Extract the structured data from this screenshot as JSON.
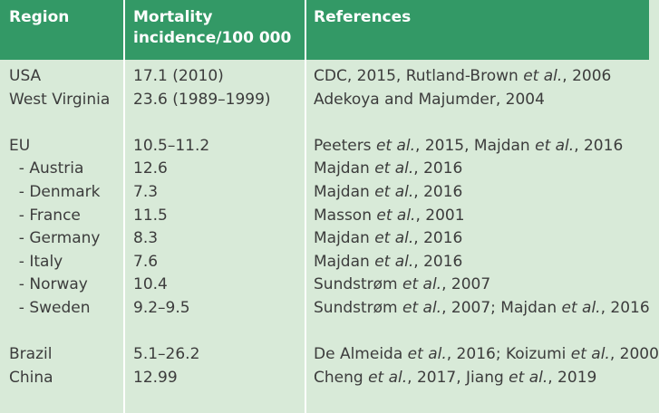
{
  "header": {
    "region": "Region",
    "mortality_line1": "Mortality",
    "mortality_line2": "incidence/100 000",
    "references": "References"
  },
  "groups": [
    {
      "rows": [
        {
          "region": "USA",
          "mortality": "17.1 (2010)",
          "ref": [
            [
              "CDC, 2015, Rutland-Brown ",
              "n"
            ],
            [
              "et al.",
              "i"
            ],
            [
              ", 2006",
              "n"
            ]
          ]
        },
        {
          "region": "West Virginia",
          "mortality": "23.6 (1989–1999)",
          "ref": [
            [
              "Adekoya and Majumder, 2004",
              "n"
            ]
          ]
        }
      ]
    },
    {
      "rows": [
        {
          "region": "EU",
          "mortality": "10.5–11.2",
          "ref": [
            [
              "Peeters ",
              "n"
            ],
            [
              "et al.",
              "i"
            ],
            [
              ", 2015, Majdan ",
              "n"
            ],
            [
              "et al.",
              "i"
            ],
            [
              ", 2016",
              "n"
            ]
          ]
        },
        {
          "region": "  - Austria",
          "mortality": "12.6",
          "ref": [
            [
              "Majdan ",
              "n"
            ],
            [
              "et al.",
              "i"
            ],
            [
              ", 2016",
              "n"
            ]
          ]
        },
        {
          "region": "  - Denmark",
          "mortality": "7.3",
          "ref": [
            [
              "Majdan ",
              "n"
            ],
            [
              "et al.",
              "i"
            ],
            [
              ", 2016",
              "n"
            ]
          ]
        },
        {
          "region": "  - France",
          "mortality": "11.5",
          "ref": [
            [
              "Masson ",
              "n"
            ],
            [
              "et al.",
              "i"
            ],
            [
              ", 2001",
              "n"
            ]
          ]
        },
        {
          "region": "  - Germany",
          "mortality": "8.3",
          "ref": [
            [
              "Majdan ",
              "n"
            ],
            [
              "et al.",
              "i"
            ],
            [
              ", 2016",
              "n"
            ]
          ]
        },
        {
          "region": "  - Italy",
          "mortality": "7.6",
          "ref": [
            [
              "Majdan ",
              "n"
            ],
            [
              "et al.",
              "i"
            ],
            [
              ", 2016",
              "n"
            ]
          ]
        },
        {
          "region": "  - Norway",
          "mortality": "10.4",
          "ref": [
            [
              "Sundstrøm ",
              "n"
            ],
            [
              "et al.",
              "i"
            ],
            [
              ", 2007",
              "n"
            ]
          ]
        },
        {
          "region": "  - Sweden",
          "mortality": "9.2–9.5",
          "ref": [
            [
              "Sundstrøm ",
              "n"
            ],
            [
              "et al.",
              "i"
            ],
            [
              ", 2007; Majdan ",
              "n"
            ],
            [
              "et al.",
              "i"
            ],
            [
              ", 2016",
              "n"
            ]
          ]
        }
      ]
    },
    {
      "rows": [
        {
          "region": "Brazil",
          "mortality": "5.1–26.2",
          "ref": [
            [
              "De Almeida ",
              "n"
            ],
            [
              "et al.",
              "i"
            ],
            [
              ", 2016; Koizumi ",
              "n"
            ],
            [
              "et al.",
              "i"
            ],
            [
              ", 2000",
              "n"
            ]
          ]
        },
        {
          "region": "China",
          "mortality": "12.99",
          "ref": [
            [
              "Cheng ",
              "n"
            ],
            [
              "et al.",
              "i"
            ],
            [
              ", 2017, Jiang ",
              "n"
            ],
            [
              "et al.",
              "i"
            ],
            [
              ", 2019",
              "n"
            ]
          ]
        }
      ]
    }
  ]
}
